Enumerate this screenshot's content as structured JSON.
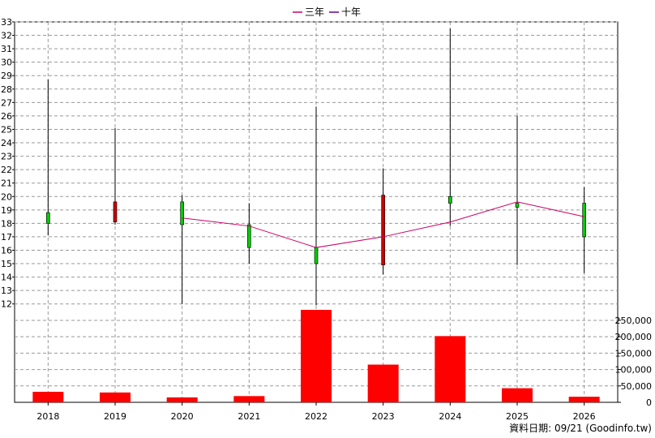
{
  "legend": [
    {
      "label": "三年",
      "color": "#cc0066"
    },
    {
      "label": "十年",
      "color": "#660099"
    }
  ],
  "footer": {
    "text": "資料日期: 09/21  (Goodinfo.tw)"
  },
  "colors": {
    "candle_up": "#00cc00",
    "candle_down": "#cc0000",
    "wick": "#000000",
    "line": "#cc0066",
    "volume": "#ff0000",
    "grid": "#999999"
  },
  "chart_data": [
    {
      "type": "candlestick",
      "grid": true,
      "legend_position": "top-center",
      "categories": [
        "2018",
        "2019",
        "2020",
        "2021",
        "2022",
        "2023",
        "2024",
        "2025",
        "2026"
      ],
      "ylim": [
        11.5,
        33
      ],
      "yticks": [
        12,
        13,
        14,
        15,
        16,
        17,
        18,
        19,
        20,
        21,
        22,
        23,
        24,
        25,
        26,
        27,
        28,
        29,
        30,
        31,
        32,
        33
      ],
      "candles": [
        {
          "year": "2018",
          "open": 18.0,
          "close": 18.8,
          "high": 28.7,
          "low": 17.1,
          "color": "up"
        },
        {
          "year": "2019",
          "open": 19.6,
          "close": 18.1,
          "high": 25.1,
          "low": 17.9,
          "color": "down"
        },
        {
          "year": "2020",
          "open": 17.9,
          "close": 19.6,
          "high": 20.1,
          "low": 12.0,
          "color": "up"
        },
        {
          "year": "2021",
          "open": 16.2,
          "close": 17.9,
          "high": 19.5,
          "low": 15.0,
          "color": "up"
        },
        {
          "year": "2022",
          "open": 15.0,
          "close": 16.2,
          "high": 26.7,
          "low": 11.9,
          "color": "up"
        },
        {
          "year": "2023",
          "open": 20.1,
          "close": 14.9,
          "high": 22.1,
          "low": 14.2,
          "color": "down"
        },
        {
          "year": "2024",
          "open": 19.5,
          "close": 20.0,
          "high": 32.5,
          "low": 17.8,
          "color": "up"
        },
        {
          "year": "2025",
          "open": 19.2,
          "close": 19.5,
          "high": 26.0,
          "low": 14.9,
          "color": "up"
        },
        {
          "year": "2026",
          "open": 17.0,
          "close": 19.5,
          "high": 20.7,
          "low": 14.3,
          "color": "up"
        }
      ],
      "series": [
        {
          "name": "三年",
          "x": [
            "2020",
            "2021",
            "2022",
            "2023",
            "2024",
            "2025",
            "2026"
          ],
          "values": [
            18.4,
            17.8,
            16.2,
            17.0,
            18.1,
            19.6,
            18.5
          ]
        }
      ]
    },
    {
      "type": "bar",
      "grid": true,
      "categories": [
        "2018",
        "2019",
        "2020",
        "2021",
        "2022",
        "2023",
        "2024",
        "2025",
        "2026"
      ],
      "values": [
        32000,
        30000,
        15000,
        19000,
        282000,
        115000,
        202000,
        43000,
        17000
      ],
      "ylim": [
        0,
        287000
      ],
      "yticks": [
        0,
        50000,
        100000,
        150000,
        200000,
        250000
      ],
      "ytick_labels": [
        "0",
        "50,000",
        "100,000",
        "150,000",
        "200,000",
        "250,000"
      ]
    }
  ]
}
